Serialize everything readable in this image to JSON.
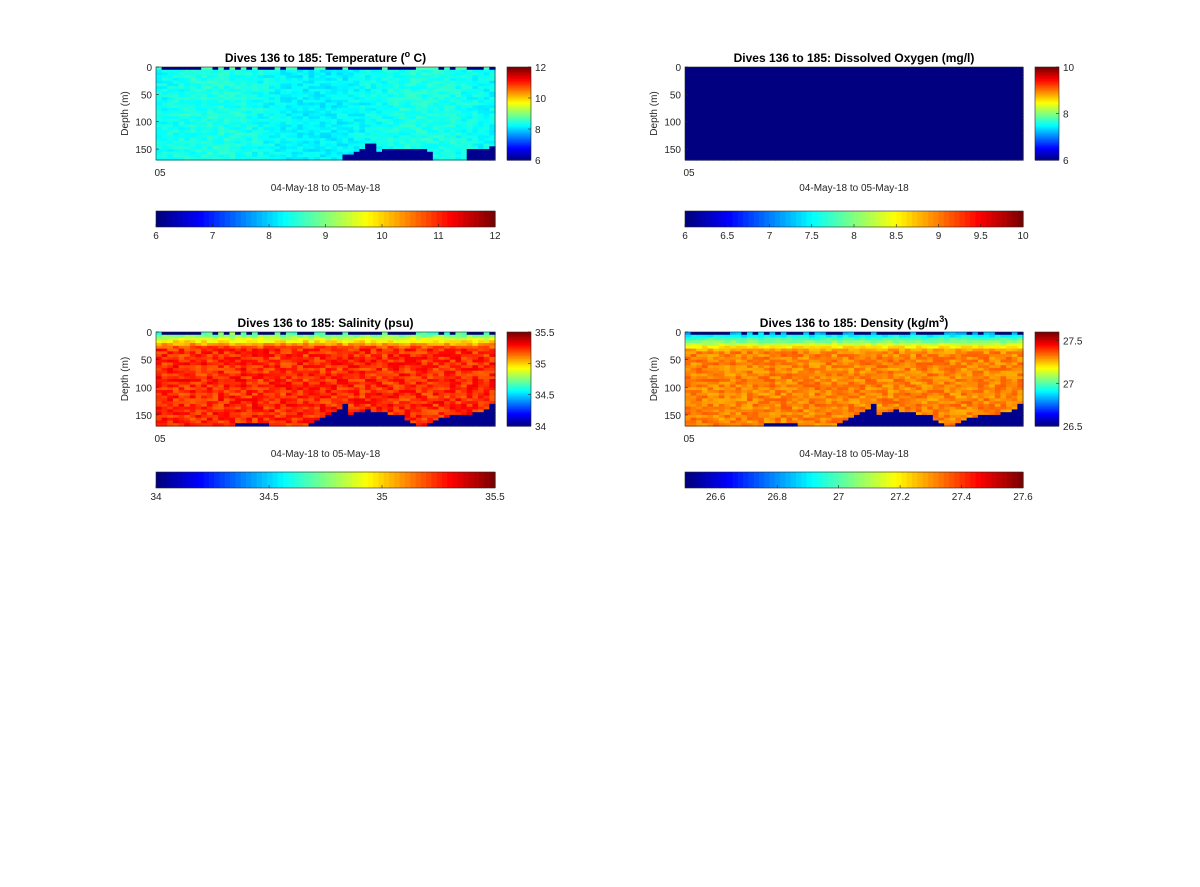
{
  "colormap_name": "jet",
  "nodata_color": "#00008f",
  "chart_data": [
    {
      "type": "heatmap",
      "title": "Dives 136 to 185: Temperature (",
      "title_sup": "o",
      "title_end": " C)",
      "xlabel": "04-May-18 to 05-May-18",
      "ylabel": "Depth (m)",
      "x_tick_labels": [
        "05"
      ],
      "y_ticks": [
        0,
        50,
        100,
        150
      ],
      "ylim": [
        0,
        170
      ],
      "y_reversed": true,
      "clim": [
        6,
        12
      ],
      "colorbar_ticks": [
        6,
        8,
        10,
        12
      ],
      "h_colorbar_ticks": [
        6,
        7,
        8,
        9,
        10,
        11,
        12
      ],
      "field": "temperature",
      "base_value": 8.3,
      "surface_value": 8.6,
      "dives": 50,
      "bottom_depths": [
        170,
        170,
        170,
        170,
        170,
        170,
        170,
        170,
        170,
        170,
        170,
        170,
        170,
        170,
        170,
        170,
        170,
        170,
        170,
        170,
        170,
        170,
        170,
        170,
        170,
        170,
        170,
        170,
        170,
        170,
        170,
        170,
        170,
        170,
        170,
        170,
        170,
        170,
        170,
        170,
        170,
        170,
        170,
        170,
        170,
        170,
        170,
        170,
        170,
        170
      ]
    },
    {
      "type": "heatmap",
      "title": "Dives 136 to 185: Dissolved Oxygen (mg/l)",
      "xlabel": "04-May-18 to 05-May-18",
      "ylabel": "Depth (m)",
      "x_tick_labels": [
        "05"
      ],
      "y_ticks": [
        0,
        50,
        100,
        150
      ],
      "ylim": [
        0,
        170
      ],
      "y_reversed": true,
      "clim": [
        6,
        10
      ],
      "colorbar_ticks": [
        6,
        8,
        10
      ],
      "h_colorbar_ticks": [
        6,
        6.5,
        7,
        7.5,
        8,
        8.5,
        9,
        9.5,
        10
      ],
      "field": "oxygen",
      "note_values": "all cells at or below colour minimum"
    },
    {
      "type": "heatmap",
      "title": "Dives 136 to 185: Salinity (psu)",
      "xlabel": "04-May-18 to 05-May-18",
      "ylabel": "Depth (m)",
      "x_tick_labels": [
        "05"
      ],
      "y_ticks": [
        0,
        50,
        100,
        150
      ],
      "ylim": [
        0,
        170
      ],
      "y_reversed": true,
      "clim": [
        34,
        35.5
      ],
      "colorbar_ticks": [
        34,
        34.5,
        35,
        35.5
      ],
      "h_colorbar_ticks": [
        34,
        34.5,
        35,
        35.5
      ],
      "field": "salinity",
      "surface_value": 34.6,
      "deep_value": 35.25,
      "bottom_depths": [
        170,
        170,
        170,
        170,
        170,
        170,
        170,
        170,
        170,
        170,
        170,
        170,
        170,
        170,
        170,
        170,
        170,
        170,
        170,
        170,
        170,
        170,
        170,
        165,
        163,
        163,
        163,
        163,
        163,
        170,
        170,
        170,
        170,
        170,
        170,
        170,
        170,
        170,
        170,
        170,
        170,
        170,
        170,
        170,
        170,
        170,
        170,
        170,
        170,
        170
      ]
    },
    {
      "type": "heatmap",
      "title": "Dives 136 to 185: Density (kg/m",
      "title_sup": "3",
      "title_end": ")",
      "xlabel": "04-May-18 to 05-May-18",
      "ylabel": "Depth (m)",
      "x_tick_labels": [
        "05"
      ],
      "y_ticks": [
        0,
        50,
        100,
        150
      ],
      "ylim": [
        0,
        170
      ],
      "y_reversed": true,
      "clim": [
        26.5,
        27.6
      ],
      "colorbar_ticks": [
        26.5,
        27,
        27.5
      ],
      "h_colorbar_ticks": [
        26.6,
        26.8,
        27,
        27.2,
        27.4,
        27.6
      ],
      "field": "density",
      "surface_value": 26.8,
      "deep_value": 27.32
    }
  ]
}
